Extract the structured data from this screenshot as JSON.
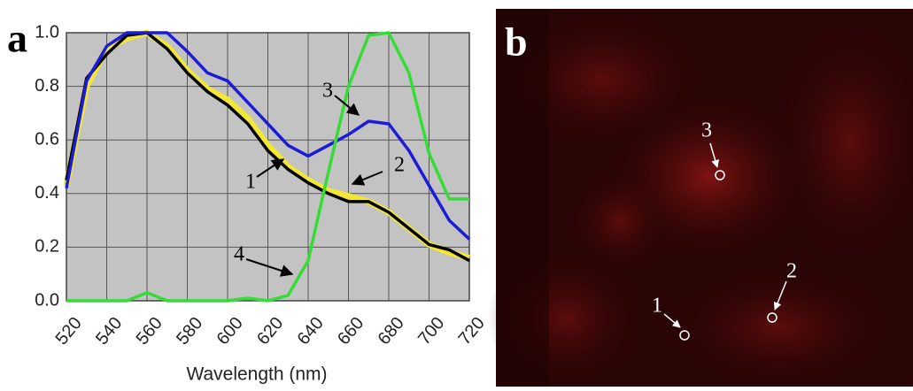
{
  "chart_data": {
    "type": "line",
    "label": "a",
    "xlabel": "Wavelength (nm)",
    "x": [
      520,
      530,
      540,
      550,
      560,
      570,
      580,
      590,
      600,
      610,
      620,
      630,
      640,
      650,
      660,
      670,
      680,
      690,
      700,
      710,
      720
    ],
    "xlim": [
      520,
      720
    ],
    "xticks": [
      520,
      540,
      560,
      580,
      600,
      620,
      640,
      660,
      680,
      700,
      720
    ],
    "ylim": [
      0,
      1
    ],
    "yticks": [
      {
        "value": 0,
        "label": "0.0"
      },
      0.2,
      0.4,
      0.6,
      0.8,
      {
        "value": 1,
        "label": "1.0"
      }
    ],
    "grid": true,
    "series": [
      {
        "name": "2",
        "color": "#f2e833",
        "values": [
          0.43,
          0.8,
          0.94,
          0.98,
          1.0,
          0.95,
          0.86,
          0.79,
          0.75,
          0.68,
          0.58,
          0.5,
          0.45,
          0.41,
          0.39,
          0.37,
          0.33,
          0.27,
          0.21,
          0.18,
          0.16
        ]
      },
      {
        "name": "1",
        "color": "#000000",
        "values": [
          0.45,
          0.83,
          0.92,
          0.99,
          1.0,
          0.94,
          0.85,
          0.78,
          0.73,
          0.66,
          0.56,
          0.49,
          0.44,
          0.4,
          0.37,
          0.37,
          0.33,
          0.27,
          0.21,
          0.19,
          0.15
        ]
      },
      {
        "name": "3",
        "color": "#1c1cd8",
        "values": [
          0.42,
          0.82,
          0.95,
          1.0,
          1.0,
          1.0,
          0.93,
          0.85,
          0.82,
          0.74,
          0.66,
          0.58,
          0.54,
          0.58,
          0.62,
          0.67,
          0.66,
          0.56,
          0.43,
          0.3,
          0.23
        ]
      },
      {
        "name": "4",
        "color": "#35dc35",
        "values": [
          0,
          0,
          0,
          0,
          0.03,
          0,
          0,
          0,
          0,
          0.01,
          0,
          0.02,
          0.15,
          0.48,
          0.8,
          0.99,
          1.0,
          0.85,
          0.55,
          0.38,
          0.38
        ]
      }
    ]
  },
  "image": {
    "label": "b",
    "markers": [
      "1",
      "2",
      "3"
    ]
  }
}
